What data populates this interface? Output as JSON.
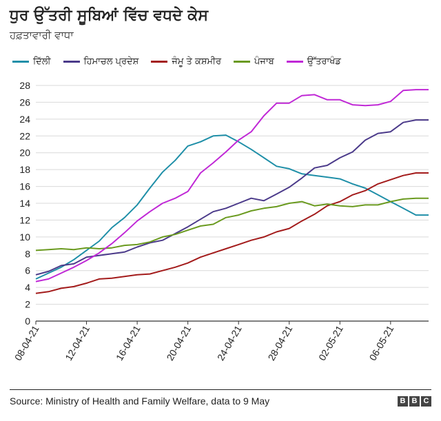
{
  "header": {
    "title": "ਧੁਰ ਉੱਤਰੀ ਸੂਬਿਆਂ ਵਿੱਚ ਵਧਦੇ ਕੇਸ",
    "subtitle": "ਹਫ਼ਤਾਵਾਰੀ ਵਾਧਾ"
  },
  "footer": {
    "source": "Source: Ministry of Health and Family Welfare, data to 9 May",
    "logo_letters": [
      "B",
      "B",
      "C"
    ]
  },
  "chart_data": {
    "type": "line",
    "title": "ਧੁਰ ਉੱਤਰੀ ਸੂਬਿਆਂ ਵਿੱਚ ਵਧਦੇ ਕੇਸ",
    "subtitle": "ਹਫ਼ਤਾਵਾਰੀ ਵਾਧਾ",
    "xlabel": "",
    "ylabel": "",
    "ylim": [
      0,
      28
    ],
    "yticks": [
      0,
      2,
      4,
      6,
      8,
      10,
      12,
      14,
      16,
      18,
      20,
      22,
      24,
      26,
      28
    ],
    "grid": "horizontal",
    "legend_position": "top",
    "x": [
      "08-04-21",
      "09-04-21",
      "10-04-21",
      "11-04-21",
      "12-04-21",
      "13-04-21",
      "14-04-21",
      "15-04-21",
      "16-04-21",
      "17-04-21",
      "18-04-21",
      "19-04-21",
      "20-04-21",
      "21-04-21",
      "22-04-21",
      "23-04-21",
      "24-04-21",
      "25-04-21",
      "26-04-21",
      "27-04-21",
      "28-04-21",
      "29-04-21",
      "30-04-21",
      "01-05-21",
      "02-05-21",
      "03-05-21",
      "04-05-21",
      "05-05-21",
      "06-05-21",
      "07-05-21",
      "08-05-21",
      "09-05-21"
    ],
    "xtick_labels": [
      "08-04-21",
      "12-04-21",
      "16-04-21",
      "20-04-21",
      "24-04-21",
      "28-04-21",
      "02-05-21",
      "06-05-21"
    ],
    "xtick_indices": [
      0,
      4,
      8,
      12,
      16,
      20,
      24,
      28
    ],
    "series": [
      {
        "name": "ਦਿੱਲੀ",
        "color": "#1f8fa8",
        "values": [
          5.0,
          5.7,
          6.4,
          7.3,
          8.4,
          9.5,
          11.1,
          12.3,
          13.8,
          15.8,
          17.7,
          19.1,
          20.8,
          21.3,
          22.0,
          22.1,
          21.3,
          20.4,
          19.4,
          18.4,
          18.1,
          17.5,
          17.3,
          17.1,
          16.9,
          16.3,
          15.8,
          15.0,
          14.2,
          13.4,
          12.6,
          12.6
        ]
      },
      {
        "name": "ਹਿਮਾਚਲ ਪ੍ਰਦੇਸ਼",
        "color": "#4b3a8a",
        "values": [
          5.5,
          5.9,
          6.6,
          6.8,
          7.6,
          7.8,
          8.0,
          8.2,
          8.8,
          9.3,
          9.6,
          10.4,
          11.2,
          12.1,
          13.0,
          13.4,
          14.0,
          14.6,
          14.3,
          15.1,
          15.9,
          17.0,
          18.2,
          18.5,
          19.4,
          20.1,
          21.5,
          22.3,
          22.5,
          23.6,
          23.9,
          23.9
        ]
      },
      {
        "name": "ਜੰਮੂ ਤੇ ਕਸ਼ਮੀਰ",
        "color": "#a31b1b",
        "values": [
          3.3,
          3.5,
          3.9,
          4.1,
          4.5,
          5.0,
          5.1,
          5.3,
          5.5,
          5.6,
          6.0,
          6.4,
          6.9,
          7.6,
          8.1,
          8.6,
          9.1,
          9.6,
          10.0,
          10.6,
          11.0,
          11.9,
          12.7,
          13.7,
          14.2,
          15.0,
          15.5,
          16.3,
          16.8,
          17.3,
          17.6,
          17.6
        ]
      },
      {
        "name": "ਪੰਜਾਬ",
        "color": "#6a9a1f",
        "values": [
          8.4,
          8.5,
          8.6,
          8.5,
          8.7,
          8.6,
          8.7,
          9.0,
          9.1,
          9.4,
          10.0,
          10.3,
          10.8,
          11.3,
          11.5,
          12.3,
          12.6,
          13.1,
          13.4,
          13.6,
          14.0,
          14.2,
          13.7,
          13.9,
          13.7,
          13.6,
          13.8,
          13.8,
          14.2,
          14.5,
          14.6,
          14.6
        ]
      },
      {
        "name": "ਉੱਤਰਾਖੰਡ",
        "color": "#c028d6",
        "values": [
          4.7,
          5.0,
          5.7,
          6.4,
          7.2,
          8.1,
          9.2,
          10.5,
          11.9,
          13.0,
          14.0,
          14.6,
          15.4,
          17.6,
          18.8,
          20.1,
          21.5,
          22.5,
          24.4,
          25.9,
          25.9,
          26.8,
          26.9,
          26.3,
          26.3,
          25.7,
          25.6,
          25.7,
          26.1,
          27.4,
          27.5,
          27.5
        ]
      }
    ]
  }
}
